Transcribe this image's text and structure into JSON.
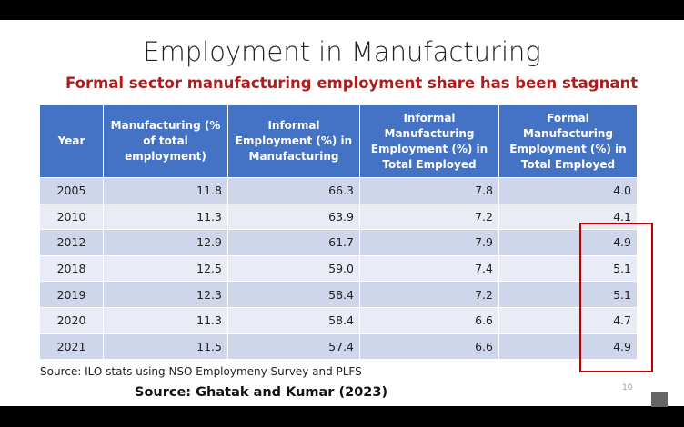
{
  "title": "Employment in Manufacturing",
  "subtitle": "Formal sector manufacturing employment share has been stagnant",
  "table": {
    "header": [
      "Year",
      "Manufacturing (% of total employment)",
      "Informal Employment (%) in Manufacturing",
      "Informal Manufacturing Employment (%) in Total Employed",
      "Formal Manufacturing Employment (%) in Total Employed"
    ],
    "rows": [
      [
        "2005",
        "11.8",
        "66.3",
        "7.8",
        "4.0"
      ],
      [
        "2010",
        "11.3",
        "63.9",
        "7.2",
        "4.1"
      ],
      [
        "2012",
        "12.9",
        "61.7",
        "7.9",
        "4.9"
      ],
      [
        "2018",
        "12.5",
        "59.0",
        "7.4",
        "5.1"
      ],
      [
        "2019",
        "12.3",
        "58.4",
        "7.2",
        "5.1"
      ],
      [
        "2020",
        "11.3",
        "58.4",
        "6.6",
        "4.7"
      ],
      [
        "2021",
        "11.5",
        "57.4",
        "6.6",
        "4.9"
      ]
    ],
    "source_note": "Source: ILO stats using NSO Employmeny Survey and PLFS"
  },
  "citation": "Source: Ghatak and Kumar (2023)",
  "page_number": "10"
}
